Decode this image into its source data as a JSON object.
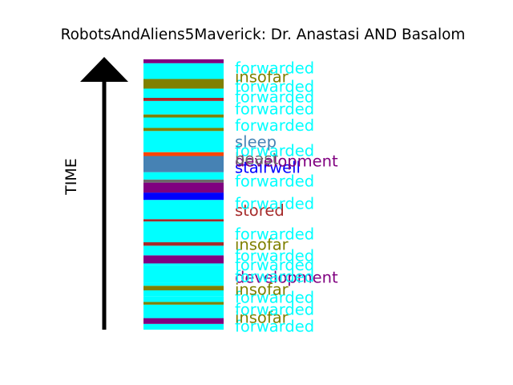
{
  "chart_data": {
    "type": "bar",
    "title": "RobotsAndAliens5Maverick: Dr. Anastasi AND Basalom",
    "ylabel": "TIME",
    "orientation": "stacked-vertical-timeline",
    "colors": {
      "forwarded": "#00ffff",
      "insofar": "#808000",
      "sleep": "#4682b4",
      "stored": "#a52a2a",
      "development": "#800080",
      "stairwell": "#0000ff",
      "beast": "#696969",
      "other": "#ff4500"
    },
    "segments": [
      {
        "word": "forwarded",
        "start": 0.0,
        "end": 1.5
      },
      {
        "word": "development",
        "start": 1.5,
        "end": 3.0
      },
      {
        "word": "forwarded",
        "start": 3.0,
        "end": 6.5
      },
      {
        "word": "insofar",
        "start": 6.5,
        "end": 7.2
      },
      {
        "word": "forwarded",
        "start": 7.2,
        "end": 8.7
      },
      {
        "word": "forwarded",
        "start": 8.7,
        "end": 10.2
      },
      {
        "word": "insofar",
        "start": 10.2,
        "end": 11.4
      },
      {
        "word": "forwarded",
        "start": 11.4,
        "end": 12.2
      },
      {
        "word": "forwarded",
        "start": 12.2,
        "end": 16.7
      },
      {
        "word": "forwarded",
        "start": 16.7,
        "end": 17.2
      },
      {
        "word": "development",
        "start": 17.2,
        "end": 19.3
      },
      {
        "word": "forwarded",
        "start": 19.3,
        "end": 21.8
      },
      {
        "word": "stored",
        "start": 21.8,
        "end": 22.7
      },
      {
        "word": "forwarded",
        "start": 22.7,
        "end": 27.7
      },
      {
        "word": "forwarded",
        "start": 27.7,
        "end": 28.1
      },
      {
        "word": "stored",
        "start": 28.1,
        "end": 28.7
      },
      {
        "word": "forwarded",
        "start": 28.7,
        "end": 33.7
      },
      {
        "word": "stairwell",
        "start": 33.7,
        "end": 35.6
      },
      {
        "word": "development",
        "start": 35.6,
        "end": 38.2
      },
      {
        "word": "beast",
        "start": 38.2,
        "end": 39.0
      },
      {
        "word": "forwarded",
        "start": 39.0,
        "end": 40.9
      },
      {
        "word": "sleep",
        "start": 40.9,
        "end": 45.1
      },
      {
        "word": "other",
        "start": 45.1,
        "end": 46.1
      },
      {
        "word": "forwarded",
        "start": 46.1,
        "end": 51.6
      },
      {
        "word": "insofar",
        "start": 51.6,
        "end": 52.4
      },
      {
        "word": "forwarded",
        "start": 52.4,
        "end": 55.1
      },
      {
        "word": "insofar",
        "start": 55.1,
        "end": 55.9
      },
      {
        "word": "forwarded",
        "start": 55.9,
        "end": 59.4
      },
      {
        "word": "stored",
        "start": 59.4,
        "end": 60.2
      },
      {
        "word": "forwarded",
        "start": 60.2,
        "end": 62.6
      },
      {
        "word": "insofar",
        "start": 62.6,
        "end": 65.1
      },
      {
        "word": "forwarded",
        "start": 65.1,
        "end": 69.2
      },
      {
        "word": "development",
        "start": 69.2,
        "end": 70.2
      }
    ],
    "labels": [
      {
        "text": "forwarded",
        "word": "forwarded",
        "t": 0.9
      },
      {
        "text": "insofar",
        "word": "insofar",
        "t": 3.2
      },
      {
        "text": "forwarded",
        "word": "forwarded",
        "t": 5.3
      },
      {
        "text": "forwarded",
        "word": "forwarded",
        "t": 8.4
      },
      {
        "text": "insofar",
        "word": "insofar",
        "t": 10.5
      },
      {
        "text": "development",
        "word": "development",
        "t": 13.6
      },
      {
        "text": "forwarded",
        "word": "forwarded",
        "t": 13.9
      },
      {
        "text": "forwarded",
        "word": "forwarded",
        "t": 16.9
      },
      {
        "text": "forwarded",
        "word": "forwarded",
        "t": 19.3
      },
      {
        "text": "insofar",
        "word": "insofar",
        "t": 22.2
      },
      {
        "text": "forwarded",
        "word": "forwarded",
        "t": 24.9
      },
      {
        "text": "stored",
        "word": "stored",
        "t": 31.0
      },
      {
        "text": "forwarded",
        "word": "forwarded",
        "t": 32.8
      },
      {
        "text": "forwarded",
        "word": "forwarded",
        "t": 38.6
      },
      {
        "text": "stairwell",
        "word": "stairwell",
        "t": 42.2
      },
      {
        "text": "development",
        "word": "development",
        "t": 43.9
      },
      {
        "text": "beast",
        "word": "beast",
        "t": 44.5
      },
      {
        "text": "forwarded",
        "word": "forwarded",
        "t": 46.6
      },
      {
        "text": "sleep",
        "word": "sleep",
        "t": 48.8
      },
      {
        "text": "forwarded",
        "word": "forwarded",
        "t": 53.1
      },
      {
        "text": "forwarded",
        "word": "forwarded",
        "t": 57.4
      },
      {
        "text": "forwarded",
        "word": "forwarded",
        "t": 60.5
      },
      {
        "text": "forwarded",
        "word": "forwarded",
        "t": 63.2
      },
      {
        "text": "insofar",
        "word": "insofar",
        "t": 65.7
      },
      {
        "text": "forwarded",
        "word": "forwarded",
        "t": 68.0
      }
    ],
    "t_max": 70.2,
    "grid": false,
    "legend": "none"
  }
}
